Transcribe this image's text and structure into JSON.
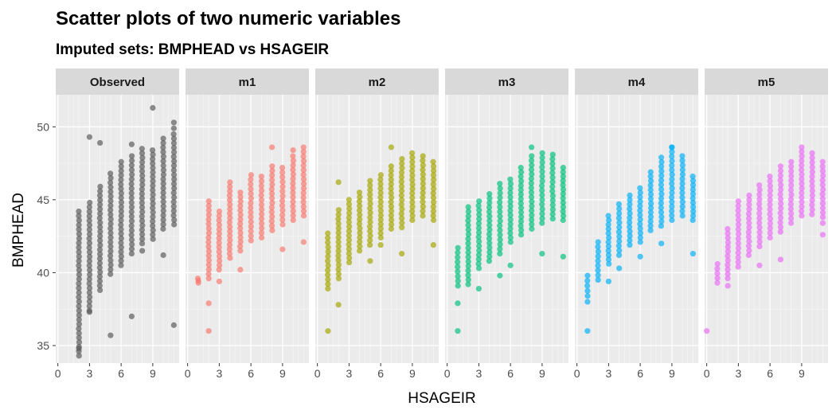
{
  "chart_data": {
    "type": "scatter",
    "title": "Scatter plots of two numeric variables",
    "subtitle": "Imputed sets:  BMPHEAD vs HSAGEIR",
    "xlabel": "HSAGEIR",
    "ylabel": "BMPHEAD",
    "xlim": [
      -0.2,
      11.5
    ],
    "ylim": [
      33.8,
      52.2
    ],
    "x_ticks": [
      0,
      3,
      6,
      9
    ],
    "y_ticks": [
      35,
      40,
      45,
      50
    ],
    "grid": true,
    "facets": [
      {
        "name": "Observed",
        "color": "#595959",
        "columns": [
          {
            "x": 2,
            "y_min": 34.3,
            "y_max": 44.2
          },
          {
            "x": 3,
            "y_min": 37.4,
            "y_max": 44.8
          },
          {
            "x": 4,
            "y_min": 38.8,
            "y_max": 45.9
          },
          {
            "x": 5,
            "y_min": 39.9,
            "y_max": 46.8
          },
          {
            "x": 6,
            "y_min": 40.5,
            "y_max": 47.6
          },
          {
            "x": 7,
            "y_min": 41.3,
            "y_max": 48.0
          },
          {
            "x": 8,
            "y_min": 42.0,
            "y_max": 48.5
          },
          {
            "x": 9,
            "y_min": 42.3,
            "y_max": 48.4
          },
          {
            "x": 10,
            "y_min": 43.0,
            "y_max": 49.2
          },
          {
            "x": 11,
            "y_min": 43.3,
            "y_max": 49.5
          }
        ],
        "extra_points": [
          {
            "x": 3,
            "y": 49.3
          },
          {
            "x": 4,
            "y": 48.9
          },
          {
            "x": 3,
            "y": 37.3
          },
          {
            "x": 5,
            "y": 35.7
          },
          {
            "x": 7,
            "y": 48.8
          },
          {
            "x": 7,
            "y": 37.0
          },
          {
            "x": 9,
            "y": 51.3
          },
          {
            "x": 10,
            "y": 41.2
          },
          {
            "x": 11,
            "y": 50.3
          },
          {
            "x": 11,
            "y": 49.9
          },
          {
            "x": 11,
            "y": 36.4
          },
          {
            "x": 2,
            "y": 34.8
          },
          {
            "x": 8,
            "y": 41.5
          }
        ]
      },
      {
        "name": "m1",
        "color": "#F8766D",
        "columns": [
          {
            "x": 1,
            "y_min": 39.3,
            "y_max": 39.6
          },
          {
            "x": 2,
            "y_min": 39.6,
            "y_max": 44.9
          },
          {
            "x": 3,
            "y_min": 40.2,
            "y_max": 44.2
          },
          {
            "x": 4,
            "y_min": 41.0,
            "y_max": 46.2
          },
          {
            "x": 5,
            "y_min": 41.5,
            "y_max": 45.5
          },
          {
            "x": 6,
            "y_min": 42.2,
            "y_max": 46.7
          },
          {
            "x": 7,
            "y_min": 42.4,
            "y_max": 46.6
          },
          {
            "x": 8,
            "y_min": 42.9,
            "y_max": 47.3
          },
          {
            "x": 9,
            "y_min": 43.3,
            "y_max": 47.2
          },
          {
            "x": 10,
            "y_min": 43.6,
            "y_max": 48.0
          },
          {
            "x": 11,
            "y_min": 43.9,
            "y_max": 48.6
          }
        ],
        "extra_points": [
          {
            "x": 2,
            "y": 36.0
          },
          {
            "x": 2,
            "y": 37.9
          },
          {
            "x": 3,
            "y": 39.4
          },
          {
            "x": 8,
            "y": 48.6
          },
          {
            "x": 9,
            "y": 41.6
          },
          {
            "x": 10,
            "y": 48.4
          },
          {
            "x": 11,
            "y": 42.1
          },
          {
            "x": 5,
            "y": 40.2
          }
        ]
      },
      {
        "name": "m2",
        "color": "#A3A500",
        "columns": [
          {
            "x": 1,
            "y_min": 38.9,
            "y_max": 42.7
          },
          {
            "x": 2,
            "y_min": 39.6,
            "y_max": 44.3
          },
          {
            "x": 3,
            "y_min": 40.7,
            "y_max": 45.0
          },
          {
            "x": 4,
            "y_min": 41.5,
            "y_max": 45.5
          },
          {
            "x": 5,
            "y_min": 41.9,
            "y_max": 46.3
          },
          {
            "x": 6,
            "y_min": 42.4,
            "y_max": 46.7
          },
          {
            "x": 7,
            "y_min": 43.0,
            "y_max": 47.3
          },
          {
            "x": 8,
            "y_min": 43.1,
            "y_max": 47.8
          },
          {
            "x": 9,
            "y_min": 43.6,
            "y_max": 48.2
          },
          {
            "x": 10,
            "y_min": 43.9,
            "y_max": 48.0
          },
          {
            "x": 11,
            "y_min": 43.6,
            "y_max": 47.6
          }
        ],
        "extra_points": [
          {
            "x": 1,
            "y": 36.0
          },
          {
            "x": 2,
            "y": 46.2
          },
          {
            "x": 2,
            "y": 37.8
          },
          {
            "x": 7,
            "y": 48.6
          },
          {
            "x": 5,
            "y": 40.8
          },
          {
            "x": 11,
            "y": 41.9
          },
          {
            "x": 8,
            "y": 41.3
          },
          {
            "x": 6,
            "y": 41.9
          }
        ]
      },
      {
        "name": "m3",
        "color": "#00BF7D",
        "columns": [
          {
            "x": 1,
            "y_min": 39.1,
            "y_max": 41.7
          },
          {
            "x": 2,
            "y_min": 39.2,
            "y_max": 44.5
          },
          {
            "x": 3,
            "y_min": 40.3,
            "y_max": 44.9
          },
          {
            "x": 4,
            "y_min": 40.8,
            "y_max": 45.4
          },
          {
            "x": 5,
            "y_min": 41.3,
            "y_max": 46.1
          },
          {
            "x": 6,
            "y_min": 42.1,
            "y_max": 46.4
          },
          {
            "x": 7,
            "y_min": 42.6,
            "y_max": 47.2
          },
          {
            "x": 8,
            "y_min": 43.0,
            "y_max": 48.0
          },
          {
            "x": 9,
            "y_min": 43.4,
            "y_max": 48.2
          },
          {
            "x": 10,
            "y_min": 43.7,
            "y_max": 48.1
          },
          {
            "x": 11,
            "y_min": 43.6,
            "y_max": 47.2
          }
        ],
        "extra_points": [
          {
            "x": 1,
            "y": 36.0
          },
          {
            "x": 1,
            "y": 37.9
          },
          {
            "x": 5,
            "y": 39.8
          },
          {
            "x": 8,
            "y": 48.6
          },
          {
            "x": 9,
            "y": 41.3
          },
          {
            "x": 11,
            "y": 41.1
          },
          {
            "x": 3,
            "y": 38.9
          },
          {
            "x": 6,
            "y": 40.5
          }
        ]
      },
      {
        "name": "m4",
        "color": "#00B0F6",
        "columns": [
          {
            "x": 1,
            "y_min": 38.4,
            "y_max": 39.8
          },
          {
            "x": 2,
            "y_min": 39.5,
            "y_max": 42.1
          },
          {
            "x": 3,
            "y_min": 40.6,
            "y_max": 43.9
          },
          {
            "x": 4,
            "y_min": 41.2,
            "y_max": 44.7
          },
          {
            "x": 5,
            "y_min": 41.9,
            "y_max": 45.3
          },
          {
            "x": 6,
            "y_min": 42.1,
            "y_max": 45.8
          },
          {
            "x": 7,
            "y_min": 42.9,
            "y_max": 46.9
          },
          {
            "x": 8,
            "y_min": 43.2,
            "y_max": 47.9
          },
          {
            "x": 9,
            "y_min": 43.6,
            "y_max": 48.6
          },
          {
            "x": 10,
            "y_min": 43.9,
            "y_max": 48.0
          },
          {
            "x": 11,
            "y_min": 43.6,
            "y_max": 46.6
          }
        ],
        "extra_points": [
          {
            "x": 1,
            "y": 36.0
          },
          {
            "x": 1,
            "y": 38.0
          },
          {
            "x": 3,
            "y": 39.4
          },
          {
            "x": 9,
            "y": 48.6
          },
          {
            "x": 8,
            "y": 42.0
          },
          {
            "x": 11,
            "y": 41.3
          },
          {
            "x": 6,
            "y": 41.1
          },
          {
            "x": 4,
            "y": 40.3
          }
        ]
      },
      {
        "name": "m5",
        "color": "#E76BF3",
        "columns": [
          {
            "x": 1,
            "y_min": 39.3,
            "y_max": 40.6
          },
          {
            "x": 2,
            "y_min": 39.6,
            "y_max": 43.0
          },
          {
            "x": 3,
            "y_min": 40.4,
            "y_max": 44.9
          },
          {
            "x": 4,
            "y_min": 41.2,
            "y_max": 45.3
          },
          {
            "x": 5,
            "y_min": 41.8,
            "y_max": 46.0
          },
          {
            "x": 6,
            "y_min": 42.4,
            "y_max": 46.6
          },
          {
            "x": 7,
            "y_min": 42.8,
            "y_max": 47.3
          },
          {
            "x": 8,
            "y_min": 43.4,
            "y_max": 47.6
          },
          {
            "x": 9,
            "y_min": 43.9,
            "y_max": 48.3
          },
          {
            "x": 10,
            "y_min": 44.0,
            "y_max": 48.2
          },
          {
            "x": 11,
            "y_min": 43.8,
            "y_max": 47.6
          }
        ],
        "extra_points": [
          {
            "x": 0,
            "y": 36.0
          },
          {
            "x": 9,
            "y": 48.6
          },
          {
            "x": 11,
            "y": 42.6
          },
          {
            "x": 5,
            "y": 40.5
          },
          {
            "x": 2,
            "y": 39.1
          },
          {
            "x": 7,
            "y": 40.9
          },
          {
            "x": 11,
            "y": 43.4
          }
        ]
      }
    ]
  }
}
